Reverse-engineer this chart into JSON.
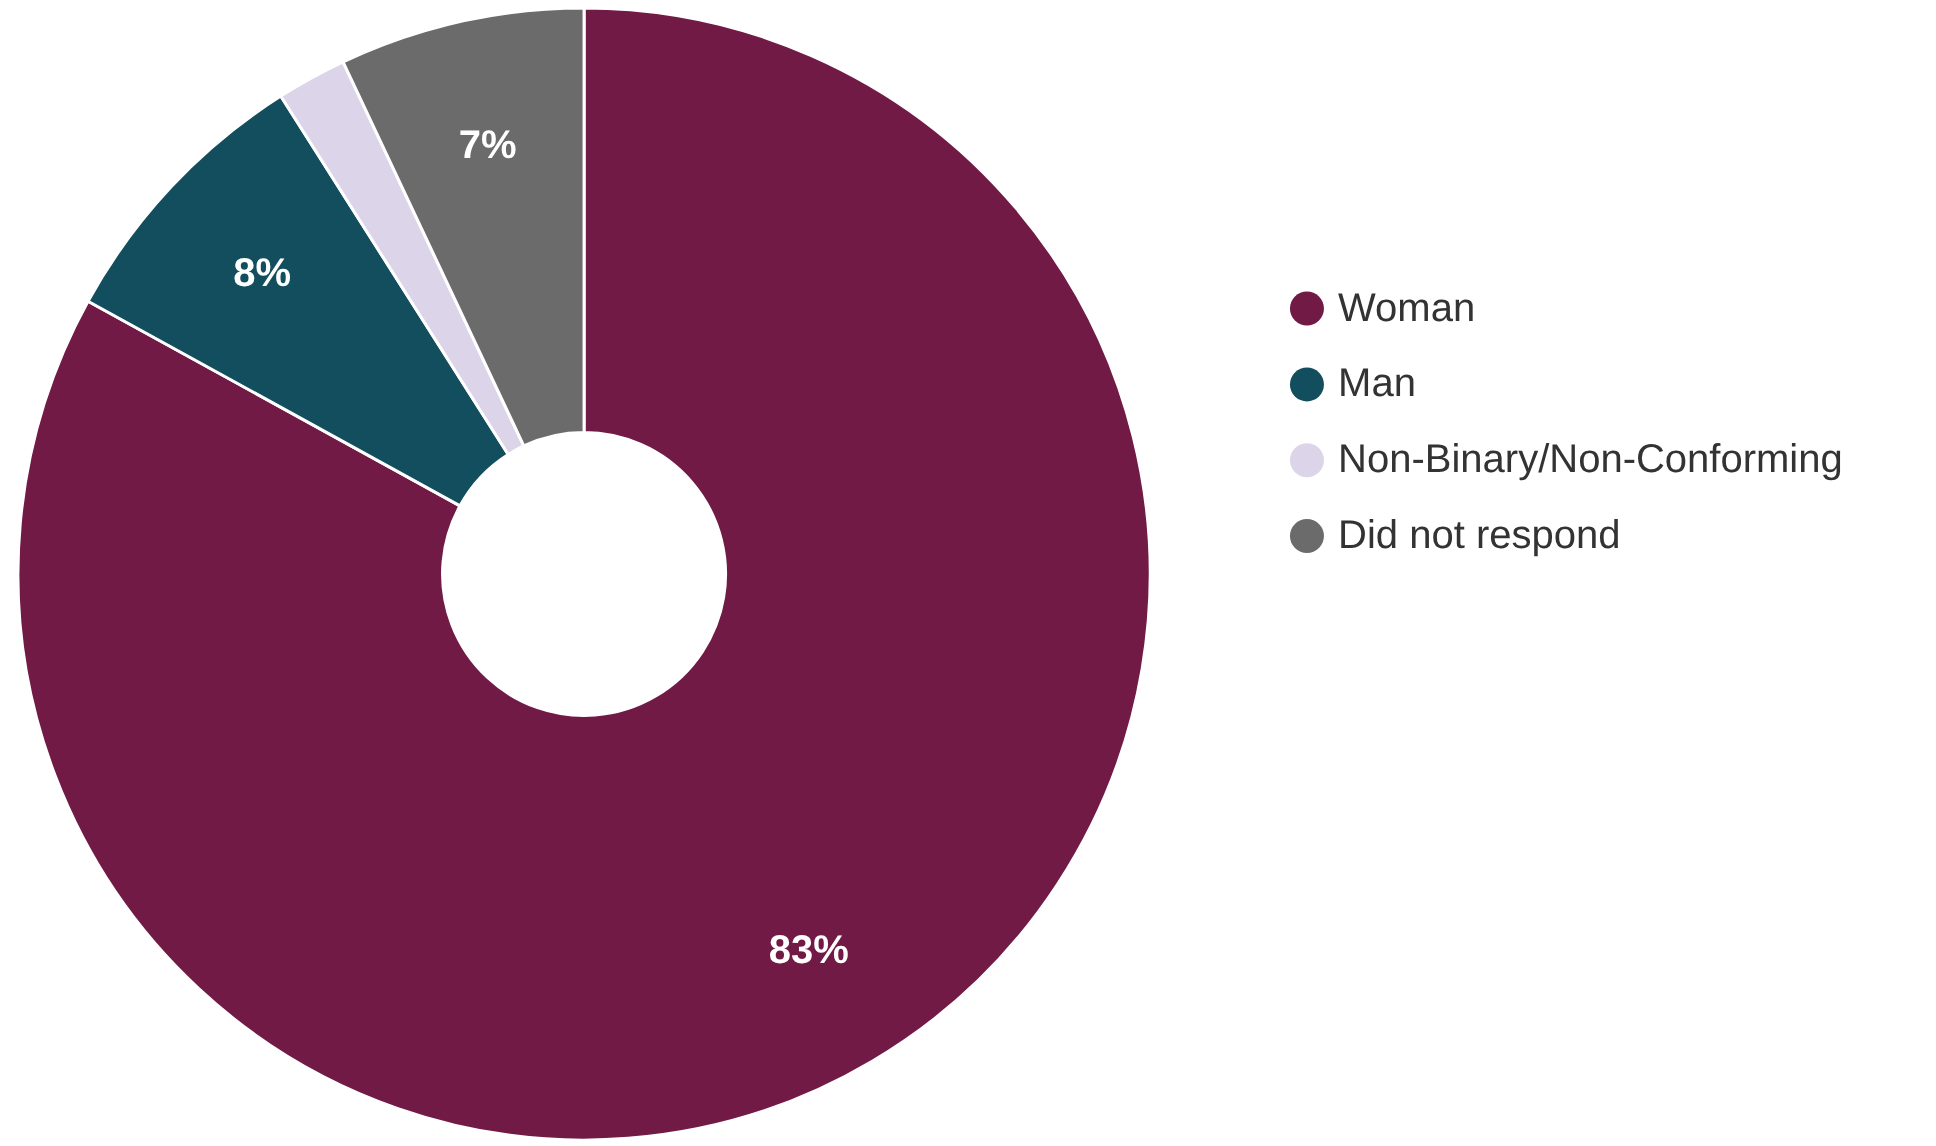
{
  "chart_data": {
    "type": "donut",
    "categories": [
      "Woman",
      "Man",
      "Non-Binary/Non-Conforming",
      "Did not respond"
    ],
    "values": [
      83,
      8,
      2,
      7
    ],
    "colors": [
      "#701a45",
      "#134e5e",
      "#dcd5ea",
      "#6b6b6b"
    ],
    "value_labels": [
      "83%",
      "8%",
      null,
      "7%"
    ],
    "legend": "right"
  }
}
